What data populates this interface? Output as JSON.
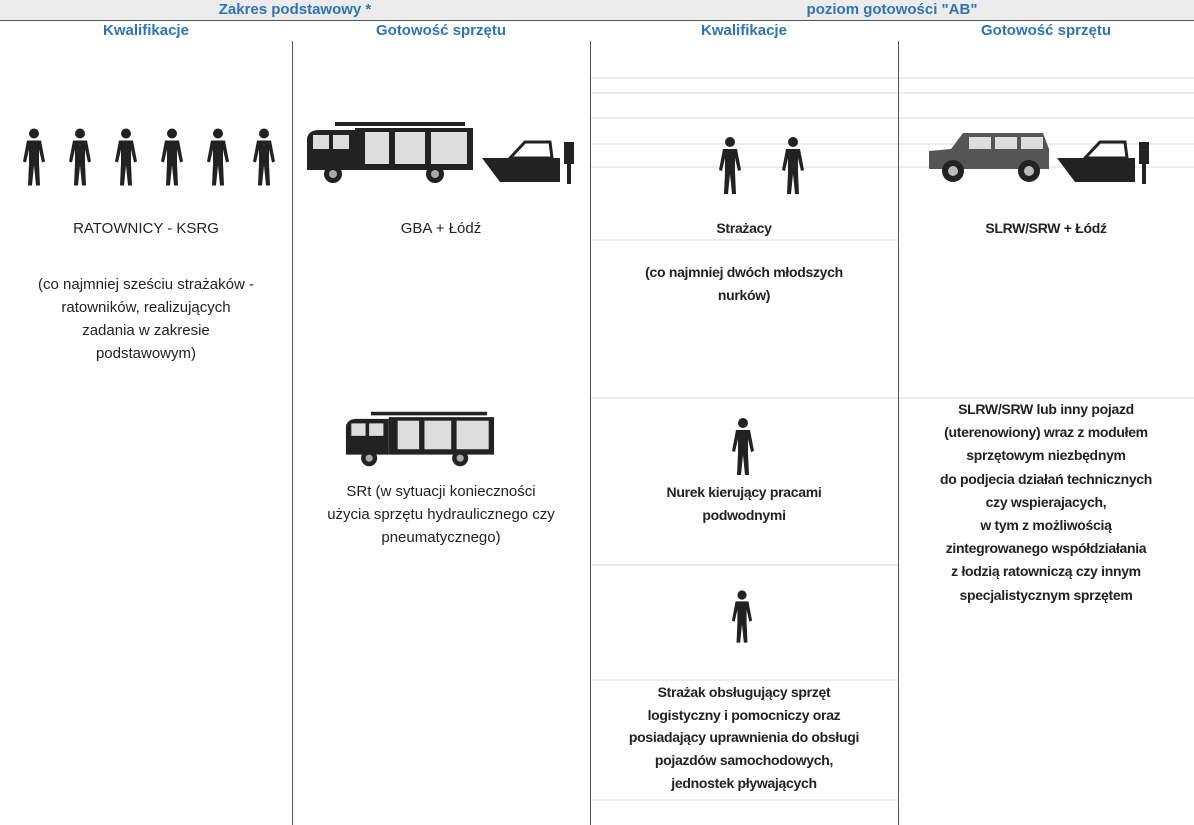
{
  "header": {
    "groups": [
      "Zakres podstawowy *",
      "poziom gotowości \"AB\""
    ],
    "columns": [
      "Kwalifikacje",
      "Gotowość sprzętu",
      "Kwalifikacje",
      "Gotowość sprzętu"
    ]
  },
  "cells": [
    {
      "blocks": [
        {
          "lines": [
            "RATOWNICY - KSRG"
          ]
        },
        {
          "lines": [
            "(co najmniej sześciu strażaków -",
            "ratowników, realizujących",
            "zadania w zakresie",
            "podstawowym)"
          ]
        }
      ]
    },
    {
      "blocks": [
        {
          "lines": [
            "GBA + Łódź"
          ]
        },
        {
          "lines": [
            "SRt (w sytuacji konieczności",
            "użycia sprzętu hydraulicznego czy",
            "pneumatycznego)"
          ]
        }
      ]
    },
    {
      "blocks": [
        {
          "lines": [
            "Strażacy"
          ]
        },
        {
          "lines": [
            "(co najmniej dwóch młodszych",
            "nurków)"
          ]
        },
        {
          "lines": [
            "Nurek kierujący pracami",
            "podwodnymi"
          ]
        },
        {
          "lines": [
            "Strażak obsługujący sprzęt",
            "logistyczny i pomocniczy oraz",
            "posiadający uprawnienia do obsługi",
            "pojazdów samochodowych,",
            "jednostek pływających"
          ]
        }
      ]
    },
    {
      "blocks": [
        {
          "lines": [
            "SLRW/SRW + Łódź"
          ]
        },
        {
          "lines": [
            "SLRW/SRW lub inny pojazd",
            "(uterenowiony) wraz z modułem",
            "sprzętowym niezbędnym",
            "do podjecia działań technicznych",
            "czy wspierajacych,",
            "w tym z możliwością",
            "zintegrowanego współdziałania",
            "z łodzią ratowniczą czy innym",
            "specjalistycznym sprzętem"
          ]
        }
      ]
    }
  ]
}
